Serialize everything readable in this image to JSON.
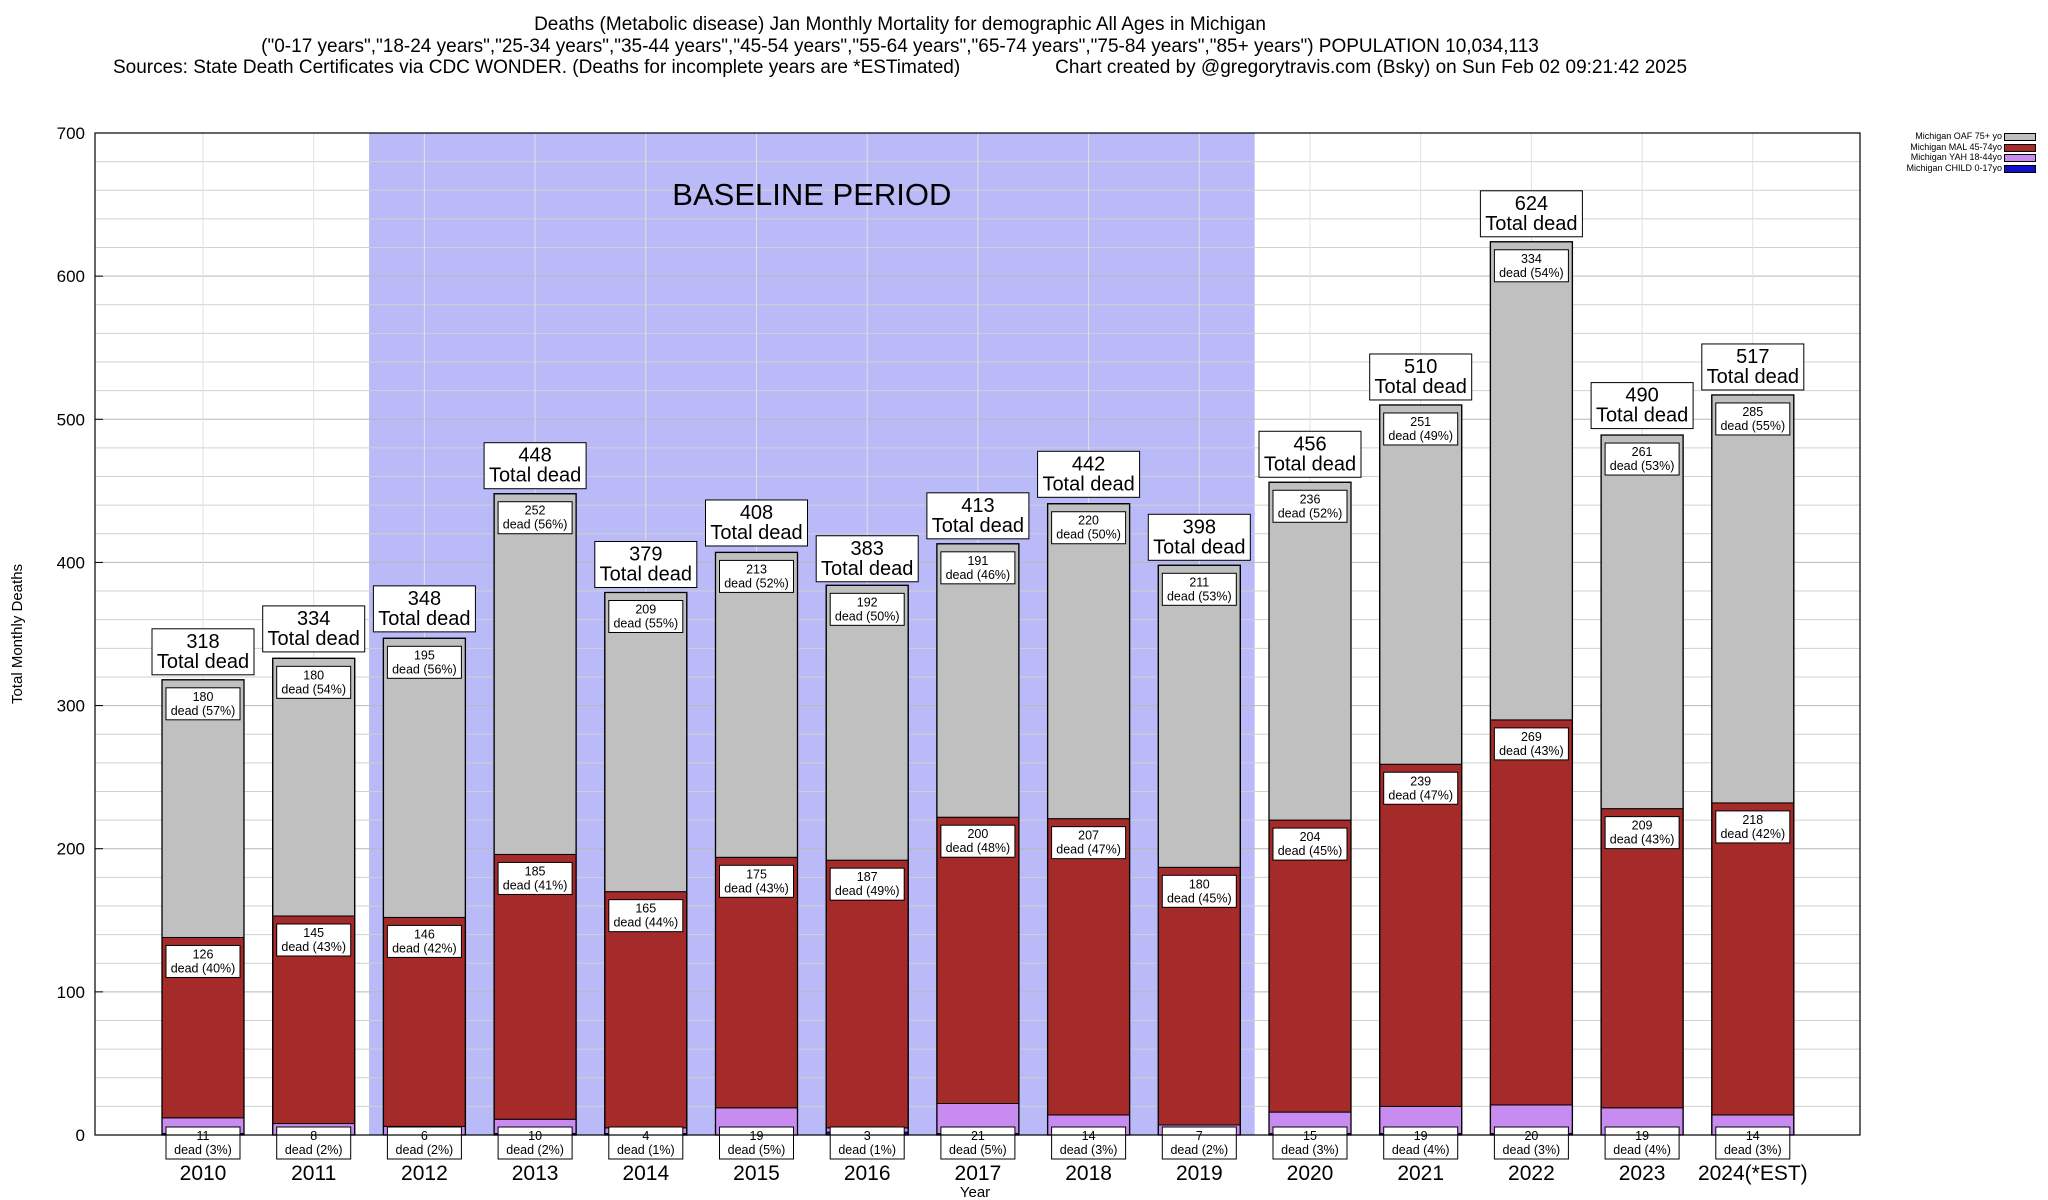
{
  "header": {
    "line1": "Deaths (Metabolic disease) Jan Monthly Mortality for demographic All Ages in Michigan",
    "line2": "(\"0-17 years\",\"18-24 years\",\"25-34 years\",\"35-44 years\",\"45-54 years\",\"55-64 years\",\"65-74 years\",\"75-84 years\",\"85+ years\") POPULATION 10,034,113",
    "line3_left": "Sources: State Death Certificates via CDC WONDER. (Deaths for incomplete years are *ESTimated)",
    "line3_right": "Chart created by @gregorytravis.com (Bsky) on Sun Feb 02 09:21:42 2025"
  },
  "chart_data": {
    "type": "bar",
    "stacked": true,
    "xlabel": "Year",
    "ylabel": "Total Monthly Deaths",
    "ylim": [
      0,
      700
    ],
    "yticks": [
      0,
      100,
      200,
      300,
      400,
      500,
      600,
      700
    ],
    "grid": true,
    "legend_position": "top-right",
    "annotation": "BASELINE PERIOD",
    "baseline_range": [
      "2012",
      "2019"
    ],
    "categories": [
      "2010",
      "2011",
      "2012",
      "2013",
      "2014",
      "2015",
      "2016",
      "2017",
      "2018",
      "2019",
      "2020",
      "2021",
      "2022",
      "2023",
      "2024(*EST)"
    ],
    "series": [
      {
        "name": "Michigan CHILD 0-17yo",
        "color": "#1010c8",
        "values": [
          1,
          0,
          0,
          1,
          1,
          0,
          2,
          1,
          0,
          0,
          1,
          1,
          1,
          0,
          0
        ]
      },
      {
        "name": "Michigan YAH 18-44yo",
        "color": "#c88cf0",
        "values": [
          11,
          8,
          6,
          10,
          4,
          19,
          3,
          21,
          14,
          7,
          15,
          19,
          20,
          19,
          14
        ],
        "pct": [
          "3%",
          "2%",
          "2%",
          "2%",
          "1%",
          "5%",
          "1%",
          "5%",
          "3%",
          "2%",
          "3%",
          "4%",
          "3%",
          "4%",
          "3%"
        ]
      },
      {
        "name": "Michigan MAL 45-74yo",
        "color": "#a52a2a",
        "values": [
          126,
          145,
          146,
          185,
          165,
          175,
          187,
          200,
          207,
          180,
          204,
          239,
          269,
          209,
          218
        ],
        "pct": [
          "40%",
          "43%",
          "42%",
          "41%",
          "44%",
          "43%",
          "49%",
          "48%",
          "47%",
          "45%",
          "45%",
          "47%",
          "43%",
          "43%",
          "42%"
        ]
      },
      {
        "name": "Michigan OAF 75+ yo",
        "color": "#c0c0c0",
        "values": [
          180,
          180,
          195,
          252,
          209,
          213,
          192,
          191,
          220,
          211,
          236,
          251,
          334,
          261,
          285
        ],
        "pct": [
          "57%",
          "54%",
          "56%",
          "56%",
          "55%",
          "52%",
          "50%",
          "46%",
          "50%",
          "53%",
          "52%",
          "49%",
          "54%",
          "53%",
          "55%"
        ]
      }
    ],
    "totals": [
      318,
      334,
      348,
      448,
      379,
      408,
      383,
      413,
      442,
      398,
      456,
      510,
      624,
      490,
      517
    ],
    "total_suffix": "Total dead",
    "segment_label_word": "dead"
  },
  "legend": {
    "items": [
      {
        "label": "Michigan OAF 75+ yo",
        "color": "#c0c0c0"
      },
      {
        "label": "Michigan MAL 45-74yo",
        "color": "#a52a2a"
      },
      {
        "label": "Michigan YAH 18-44yo",
        "color": "#c88cf0"
      },
      {
        "label": "Michigan CHILD 0-17yo",
        "color": "#1010c8"
      }
    ]
  }
}
